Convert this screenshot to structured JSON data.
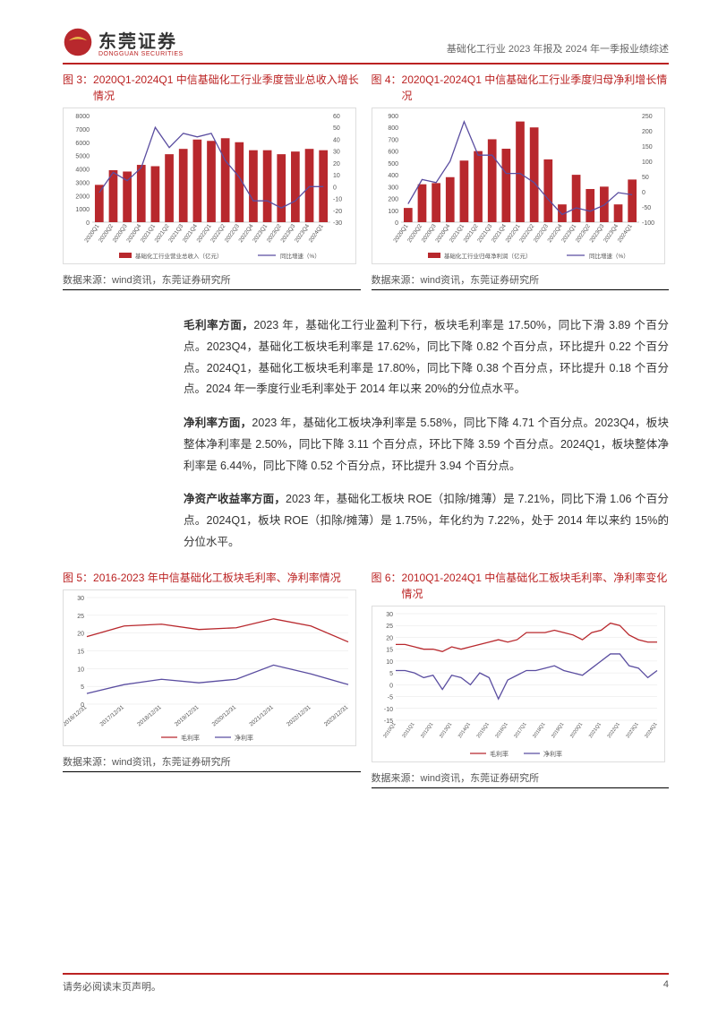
{
  "header": {
    "logo_main": "东莞证券",
    "logo_sub": "DONGGUAN SECURITIES",
    "subtitle": "基础化工行业 2023 年报及 2024 年一季报业绩综述"
  },
  "chart3": {
    "title_label": "图 3：",
    "title_text": "2020Q1-2024Q1 中信基础化工行业季度营业总收入增长情况",
    "source": "数据来源：wind资讯，东莞证券研究所",
    "categories": [
      "2020Q1",
      "2020Q2",
      "2020Q3",
      "2020Q4",
      "2021Q1",
      "2021Q2",
      "2021Q3",
      "2021Q4",
      "2022Q1",
      "2022Q2",
      "2022Q3",
      "2022Q4",
      "2023Q1",
      "2023Q2",
      "2023Q3",
      "2023Q4",
      "2024Q1"
    ],
    "bar_values": [
      2800,
      3900,
      3800,
      4300,
      4200,
      5100,
      5500,
      6200,
      6100,
      6300,
      6000,
      5400,
      5400,
      5100,
      5300,
      5500,
      5400
    ],
    "line_values": [
      -5,
      12,
      5,
      16,
      50,
      33,
      45,
      42,
      45,
      22,
      8,
      -12,
      -12,
      -18,
      -12,
      0,
      0
    ],
    "y1_max": 8000,
    "y1_step": 1000,
    "y2_min": -30,
    "y2_max": 60,
    "y2_step": 10,
    "bar_color": "#b8282d",
    "line_color": "#5a4da0",
    "legend_bar": "基础化工行业营业总收入（亿元）",
    "legend_line": "同比增速（%）"
  },
  "chart4": {
    "title_label": "图 4：",
    "title_text": "2020Q1-2024Q1 中信基础化工行业季度归母净利增长情况",
    "source": "数据来源：wind资讯，东莞证券研究所",
    "categories": [
      "2020Q1",
      "2020Q2",
      "2020Q3",
      "2020Q4",
      "2021Q1",
      "2021Q2",
      "2021Q3",
      "2021Q4",
      "2022Q1",
      "2022Q2",
      "2022Q3",
      "2022Q4",
      "2023Q1",
      "2023Q2",
      "2023Q3",
      "2023Q4",
      "2024Q1"
    ],
    "bar_values": [
      120,
      320,
      330,
      380,
      520,
      600,
      700,
      620,
      850,
      800,
      530,
      150,
      400,
      280,
      300,
      150,
      360
    ],
    "line_values": [
      -40,
      40,
      30,
      100,
      230,
      120,
      120,
      60,
      60,
      30,
      -25,
      -75,
      -53,
      -64,
      -44,
      -3,
      -10
    ],
    "y1_max": 900,
    "y1_step": 100,
    "y2_min": -100,
    "y2_max": 250,
    "y2_step": 50,
    "bar_color": "#b8282d",
    "line_color": "#5a4da0",
    "legend_bar": "基础化工行业归母净利润（亿元）",
    "legend_line": "同比增速（%）"
  },
  "body": {
    "p1_bold": "毛利率方面，",
    "p1": "2023 年，基础化工行业盈利下行，板块毛利率是 17.50%，同比下滑 3.89 个百分点。2023Q4，基础化工板块毛利率是 17.62%，同比下降 0.82 个百分点，环比提升 0.22 个百分点。2024Q1，基础化工板块毛利率是 17.80%，同比下降 0.38 个百分点，环比提升 0.18 个百分点。2024 年一季度行业毛利率处于 2014 年以来 20%的分位点水平。",
    "p2_bold": "净利率方面，",
    "p2": "2023 年，基础化工板块净利率是 5.58%，同比下降 4.71 个百分点。2023Q4，板块整体净利率是 2.50%，同比下降 3.11 个百分点，环比下降 3.59 个百分点。2024Q1，板块整体净利率是 6.44%，同比下降 0.52 个百分点，环比提升 3.94 个百分点。",
    "p3_bold": "净资产收益率方面，",
    "p3": "2023 年，基础化工板块 ROE（扣除/摊薄）是 7.21%，同比下滑 1.06 个百分点。2024Q1，板块 ROE（扣除/摊薄）是 1.75%，年化约为 7.22%，处于 2014 年以来约 15%的分位水平。"
  },
  "chart5": {
    "title_label": "图 5：",
    "title_text": "2016-2023 年中信基础化工板块毛利率、净利率情况",
    "source": "数据来源：wind资讯，东莞证券研究所",
    "categories": [
      "2016/12/31",
      "2017/12/31",
      "2018/12/31",
      "2019/12/31",
      "2020/12/31",
      "2021/12/31",
      "2022/12/31",
      "2023/12/31"
    ],
    "series1": [
      19,
      22,
      22.5,
      21,
      21.5,
      24,
      22,
      17.5
    ],
    "series2": [
      3,
      5.5,
      7,
      6,
      7,
      11,
      8.5,
      5.5
    ],
    "y_min": 0,
    "y_max": 30,
    "y_step": 5,
    "color1": "#b8282d",
    "color2": "#5a4da0",
    "legend1": "毛利率",
    "legend2": "净利率"
  },
  "chart6": {
    "title_label": "图 6：",
    "title_text": "2010Q1-2024Q1 中信基础化工板块毛利率、净利率变化情况",
    "source": "数据来源：wind资讯，东莞证券研究所",
    "categories": [
      "2010Q1",
      "2010Q3",
      "2011Q1",
      "2011Q3",
      "2012Q1",
      "2012Q3",
      "2013Q1",
      "2013Q3",
      "2014Q1",
      "2014Q3",
      "2015Q1",
      "2015Q3",
      "2016Q1",
      "2016Q3",
      "2017Q1",
      "2017Q3",
      "2018Q1",
      "2018Q3",
      "2019Q1",
      "2019Q3",
      "2020Q1",
      "2020Q3",
      "2021Q1",
      "2021Q3",
      "2022Q1",
      "2022Q3",
      "2023Q1",
      "2023Q3",
      "2024Q1"
    ],
    "series1": [
      17,
      17,
      16,
      15,
      15,
      14,
      16,
      15,
      16,
      17,
      18,
      19,
      18,
      19,
      22,
      22,
      22,
      23,
      22,
      21,
      19,
      22,
      23,
      26,
      25,
      21,
      19,
      18,
      18
    ],
    "series2": [
      6,
      6,
      5,
      3,
      4,
      -2,
      4,
      3,
      0,
      5,
      3,
      -6,
      2,
      4,
      6,
      6,
      7,
      8,
      6,
      5,
      4,
      7,
      10,
      13,
      13,
      8,
      7,
      3,
      6
    ],
    "y_min": -15,
    "y_max": 30,
    "y_step": 5,
    "color1": "#b8282d",
    "color2": "#5a4da0",
    "legend1": "毛利率",
    "legend2": "净利率"
  },
  "footer": {
    "left": "请务必阅读末页声明。",
    "page": "4"
  }
}
